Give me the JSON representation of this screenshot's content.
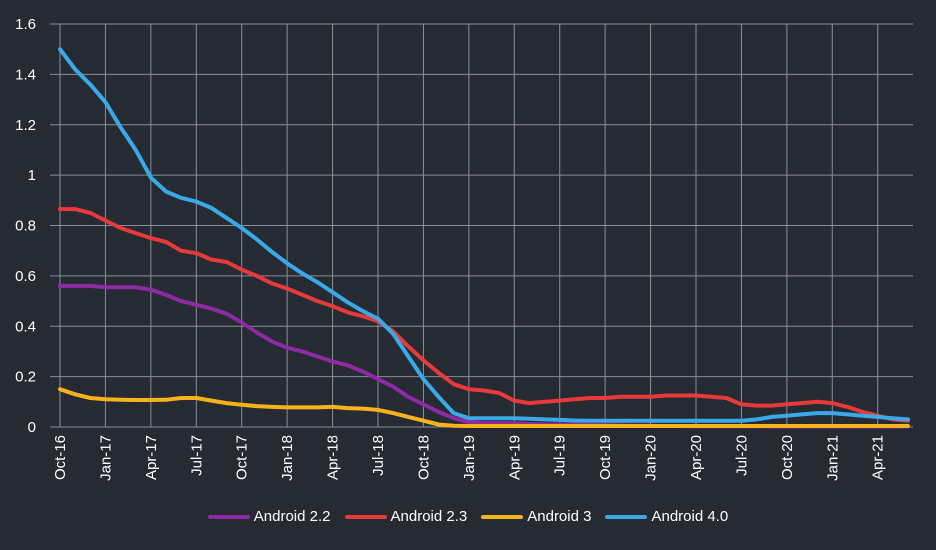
{
  "chart_data": {
    "type": "line",
    "x": [
      "Oct-16",
      "Nov-16",
      "Dec-16",
      "Jan-17",
      "Feb-17",
      "Mar-17",
      "Apr-17",
      "May-17",
      "Jun-17",
      "Jul-17",
      "Aug-17",
      "Sep-17",
      "Oct-17",
      "Nov-17",
      "Dec-17",
      "Jan-18",
      "Feb-18",
      "Mar-18",
      "Apr-18",
      "May-18",
      "Jun-18",
      "Jul-18",
      "Aug-18",
      "Sep-18",
      "Oct-18",
      "Nov-18",
      "Dec-18",
      "Jan-19",
      "Feb-19",
      "Mar-19",
      "Apr-19",
      "May-19",
      "Jun-19",
      "Jul-19",
      "Aug-19",
      "Sep-19",
      "Oct-19",
      "Nov-19",
      "Dec-19",
      "Jan-20",
      "Feb-20",
      "Mar-20",
      "Apr-20",
      "May-20",
      "Jun-20",
      "Jul-20",
      "Aug-20",
      "Sep-20",
      "Oct-20",
      "Nov-20",
      "Dec-20",
      "Jan-21",
      "Feb-21",
      "Mar-21",
      "Apr-21",
      "May-21",
      "Jun-21"
    ],
    "x_tick_labels": [
      "Oct-16",
      "Jan-17",
      "Apr-17",
      "Jul-17",
      "Oct-17",
      "Jan-18",
      "Apr-18",
      "Jul-18",
      "Oct-18",
      "Jan-19",
      "Apr-19",
      "Jul-19",
      "Oct-19",
      "Jan-20",
      "Apr-20",
      "Jul-20",
      "Oct-20",
      "Jan-21",
      "Apr-21"
    ],
    "y_ticks": [
      "0",
      "0.2",
      "0.4",
      "0.6",
      "0.8",
      "1",
      "1.2",
      "1.4",
      "1.6"
    ],
    "ylim": [
      0,
      1.6
    ],
    "grid": true,
    "legend_position": "bottom",
    "series": [
      {
        "name": "Android 2.2",
        "color": "#8e2aa3",
        "values": [
          0.56,
          0.56,
          0.56,
          0.555,
          0.555,
          0.555,
          0.545,
          0.525,
          0.5,
          0.485,
          0.47,
          0.45,
          0.415,
          0.375,
          0.34,
          0.315,
          0.3,
          0.28,
          0.26,
          0.245,
          0.22,
          0.19,
          0.16,
          0.12,
          0.09,
          0.06,
          0.035,
          0.02,
          0.015,
          0.015,
          0.015,
          0.012,
          0.01,
          0.01,
          0.01,
          0.008,
          0.008,
          0.006,
          0.005,
          0.005,
          0.004,
          0.004,
          0.003,
          0.003,
          0.003,
          0.003,
          0.003,
          0.002,
          0.002,
          0.002,
          0.002,
          0.002,
          0.002,
          0.002,
          0.002,
          0.002,
          0.002
        ]
      },
      {
        "name": "Android 2.3",
        "color": "#e83a3a",
        "values": [
          0.865,
          0.865,
          0.85,
          0.82,
          0.79,
          0.77,
          0.75,
          0.735,
          0.7,
          0.69,
          0.665,
          0.655,
          0.625,
          0.6,
          0.57,
          0.55,
          0.525,
          0.5,
          0.48,
          0.455,
          0.44,
          0.42,
          0.38,
          0.32,
          0.265,
          0.215,
          0.17,
          0.15,
          0.145,
          0.135,
          0.105,
          0.095,
          0.1,
          0.105,
          0.11,
          0.115,
          0.115,
          0.12,
          0.12,
          0.12,
          0.125,
          0.125,
          0.125,
          0.12,
          0.115,
          0.09,
          0.085,
          0.085,
          0.09,
          0.095,
          0.1,
          0.095,
          0.08,
          0.06,
          0.045,
          0.03,
          0.025
        ]
      },
      {
        "name": "Android 3",
        "color": "#f6b31c",
        "values": [
          0.15,
          0.13,
          0.115,
          0.11,
          0.108,
          0.107,
          0.107,
          0.108,
          0.115,
          0.115,
          0.105,
          0.095,
          0.088,
          0.083,
          0.08,
          0.078,
          0.078,
          0.078,
          0.08,
          0.075,
          0.073,
          0.068,
          0.055,
          0.04,
          0.025,
          0.01,
          0.005,
          0.004,
          0.004,
          0.004,
          0.004,
          0.004,
          0.004,
          0.004,
          0.004,
          0.004,
          0.004,
          0.004,
          0.004,
          0.004,
          0.004,
          0.004,
          0.004,
          0.004,
          0.004,
          0.004,
          0.004,
          0.004,
          0.004,
          0.004,
          0.004,
          0.004,
          0.004,
          0.004,
          0.004,
          0.004,
          0.004
        ]
      },
      {
        "name": "Android 4.0",
        "color": "#3aa9e8",
        "values": [
          1.5,
          1.42,
          1.36,
          1.29,
          1.19,
          1.1,
          0.99,
          0.935,
          0.91,
          0.895,
          0.87,
          0.83,
          0.79,
          0.745,
          0.695,
          0.65,
          0.61,
          0.575,
          0.535,
          0.495,
          0.46,
          0.43,
          0.37,
          0.28,
          0.19,
          0.12,
          0.055,
          0.035,
          0.035,
          0.035,
          0.035,
          0.033,
          0.03,
          0.028,
          0.026,
          0.025,
          0.025,
          0.025,
          0.025,
          0.025,
          0.025,
          0.025,
          0.025,
          0.025,
          0.025,
          0.025,
          0.03,
          0.04,
          0.045,
          0.05,
          0.055,
          0.055,
          0.05,
          0.045,
          0.04,
          0.035,
          0.03
        ]
      }
    ]
  }
}
